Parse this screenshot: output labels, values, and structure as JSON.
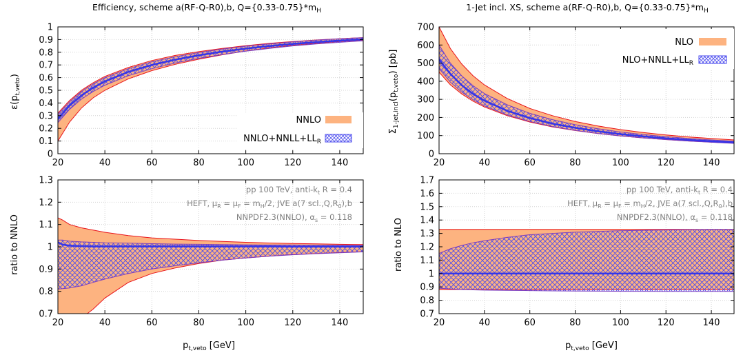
{
  "colors": {
    "nnlo_band": "#fdb380",
    "nnlo_edge": "#e8121a",
    "resum_hatch": "#4a4aee",
    "resum_edge": "#7a3cc0",
    "central": "#3535e8"
  },
  "chart_data": [
    {
      "id": "efficiency",
      "type": "area",
      "title": "Efficiency, scheme a(RF-Q-R0),b, Q={0.33-0.75}*m",
      "title_sub": "H",
      "ylabel": "ε(p",
      "ylabel_sub": "t,veto",
      "ylabel_tail": ")",
      "xlabel": "",
      "xlim": [
        20,
        150
      ],
      "ylim": [
        0,
        1
      ],
      "xticks": [
        "20",
        "40",
        "60",
        "80",
        "100",
        "120",
        "140"
      ],
      "yticks": [
        "0",
        "0.1",
        "0.2",
        "0.3",
        "0.4",
        "0.5",
        "0.6",
        "0.7",
        "0.8",
        "0.9",
        "1"
      ],
      "legend_position": "bottom-right",
      "x": [
        20,
        25,
        30,
        35,
        40,
        50,
        60,
        70,
        80,
        90,
        100,
        110,
        120,
        130,
        140,
        150
      ],
      "series": [
        {
          "name": "NNLO",
          "style": "band",
          "lower": [
            0.1,
            0.25,
            0.36,
            0.44,
            0.5,
            0.59,
            0.655,
            0.705,
            0.745,
            0.78,
            0.81,
            0.835,
            0.855,
            0.87,
            0.885,
            0.895
          ],
          "upper": [
            0.32,
            0.42,
            0.5,
            0.56,
            0.61,
            0.68,
            0.735,
            0.775,
            0.805,
            0.83,
            0.852,
            0.87,
            0.885,
            0.897,
            0.907,
            0.915
          ]
        },
        {
          "name": "NNLO+NNLL+LL",
          "name_sub": "R",
          "style": "hatch",
          "lower": [
            0.245,
            0.35,
            0.43,
            0.49,
            0.54,
            0.615,
            0.67,
            0.715,
            0.752,
            0.782,
            0.808,
            0.83,
            0.85,
            0.865,
            0.878,
            0.89
          ],
          "upper": [
            0.31,
            0.41,
            0.49,
            0.55,
            0.6,
            0.67,
            0.725,
            0.765,
            0.798,
            0.825,
            0.848,
            0.866,
            0.882,
            0.895,
            0.906,
            0.915
          ],
          "central": [
            0.275,
            0.38,
            0.46,
            0.52,
            0.57,
            0.645,
            0.7,
            0.742,
            0.776,
            0.805,
            0.829,
            0.849,
            0.866,
            0.88,
            0.892,
            0.902
          ]
        }
      ]
    },
    {
      "id": "xs",
      "type": "area",
      "title": "1-Jet incl. XS, scheme a(RF-Q-R0),b, Q={0.33-0.75}*m",
      "title_sub": "H",
      "ylabel": "Σ",
      "ylabel_sub": "1-jet,incl",
      "ylabel_mid": "(p",
      "ylabel_sub2": "t,veto",
      "ylabel_tail": ") [pb]",
      "xlabel": "",
      "xlim": [
        20,
        150
      ],
      "ylim": [
        0,
        700
      ],
      "xticks": [
        "20",
        "40",
        "60",
        "80",
        "100",
        "120",
        "140"
      ],
      "yticks": [
        "0",
        "100",
        "200",
        "300",
        "400",
        "500",
        "600",
        "700"
      ],
      "legend_position": "top-right",
      "x": [
        20,
        25,
        30,
        35,
        40,
        50,
        60,
        70,
        80,
        90,
        100,
        110,
        120,
        130,
        140,
        150
      ],
      "series": [
        {
          "name": "NLO",
          "style": "band",
          "lower": [
            450,
            380,
            330,
            290,
            258,
            210,
            175,
            148,
            128,
            111,
            98,
            87,
            78,
            70,
            64,
            58
          ],
          "upper": [
            700,
            580,
            495,
            430,
            380,
            305,
            250,
            210,
            178,
            153,
            133,
            117,
            104,
            93,
            84,
            76
          ]
        },
        {
          "name": "NLO+NNLL+LL",
          "name_sub": "R",
          "style": "hatch",
          "lower": [
            470,
            395,
            340,
            298,
            264,
            214,
            178,
            150,
            129,
            112,
            98,
            87,
            78,
            70,
            63,
            57
          ],
          "upper": [
            600,
            500,
            430,
            375,
            332,
            270,
            223,
            188,
            160,
            138,
            120,
            106,
            94,
            84,
            76,
            69
          ],
          "central": [
            520,
            440,
            378,
            330,
            293,
            237,
            197,
            166,
            143,
            124,
            108,
            96,
            85,
            76,
            69,
            63
          ]
        }
      ]
    },
    {
      "id": "ratio_nnlo",
      "type": "area",
      "title": "",
      "ylabel": "ratio to NNLO",
      "xlabel": "p",
      "xlabel_sub": "t,veto",
      "xlabel_tail": " [GeV]",
      "xlim": [
        20,
        150
      ],
      "ylim": [
        0.7,
        1.3
      ],
      "xticks": [
        "20",
        "40",
        "60",
        "80",
        "100",
        "120",
        "140"
      ],
      "yticks": [
        "0.7",
        "0.8",
        "0.9",
        "1",
        "1.1",
        "1.2",
        "1.3"
      ],
      "x": [
        20,
        22,
        25,
        30,
        35,
        40,
        50,
        60,
        70,
        80,
        90,
        100,
        110,
        120,
        130,
        140,
        150
      ],
      "series": [
        {
          "name": "NNLO",
          "style": "band",
          "lower": [
            0.45,
            0.55,
            0.62,
            0.68,
            0.72,
            0.77,
            0.84,
            0.88,
            0.905,
            0.925,
            0.94,
            0.95,
            0.958,
            0.965,
            0.97,
            0.974,
            0.978
          ],
          "upper": [
            1.13,
            1.12,
            1.1,
            1.085,
            1.075,
            1.065,
            1.05,
            1.04,
            1.034,
            1.028,
            1.024,
            1.02,
            1.017,
            1.015,
            1.013,
            1.011,
            1.01
          ]
        },
        {
          "name": "NNLO+NNLL+LL",
          "name_sub": "R",
          "style": "hatch",
          "lower": [
            0.81,
            0.812,
            0.815,
            0.825,
            0.84,
            0.855,
            0.88,
            0.9,
            0.915,
            0.928,
            0.94,
            0.95,
            0.958,
            0.964,
            0.969,
            0.973,
            0.977
          ],
          "upper": [
            1.03,
            1.03,
            1.025,
            1.022,
            1.02,
            1.018,
            1.016,
            1.014,
            1.012,
            1.011,
            1.01,
            1.009,
            1.008,
            1.008,
            1.007,
            1.007,
            1.006
          ],
          "central": [
            1.02,
            1.01,
            1.005,
            1.003,
            1.002,
            1.002,
            1.002,
            1.002,
            1.002,
            1.002,
            1.002,
            1.002,
            1.002,
            1.001,
            1.001,
            1.001,
            1.001
          ]
        }
      ],
      "annotations": [
        {
          "id": "info1",
          "parts": [
            [
              "pp 100 TeV, anti-k",
              ""
            ],
            [
              "t",
              "sub"
            ],
            [
              " R = 0.4",
              ""
            ]
          ]
        },
        {
          "id": "info2",
          "parts": [
            [
              "HEFT, μ",
              ""
            ],
            [
              "R",
              "sub"
            ],
            [
              " = μ",
              ""
            ],
            [
              "F",
              "sub"
            ],
            [
              " = m",
              ""
            ],
            [
              "H",
              "sub"
            ],
            [
              "/2, JVE a(7 scl.,Q,R",
              ""
            ],
            [
              "0",
              "sub"
            ],
            [
              "),b",
              ""
            ]
          ]
        },
        {
          "id": "info3",
          "parts": [
            [
              "NNPDF2.3(NNLO), α",
              ""
            ],
            [
              "s",
              "sub"
            ],
            [
              " = 0.118",
              ""
            ]
          ]
        }
      ]
    },
    {
      "id": "ratio_nlo",
      "type": "area",
      "title": "",
      "ylabel": "ratio to NLO",
      "xlabel": "p",
      "xlabel_sub": "t,veto",
      "xlabel_tail": " [GeV]",
      "xlim": [
        20,
        150
      ],
      "ylim": [
        0.7,
        1.7
      ],
      "xticks": [
        "20",
        "40",
        "60",
        "80",
        "100",
        "120",
        "140"
      ],
      "yticks": [
        "0.7",
        "0.8",
        "0.9",
        "1",
        "1.1",
        "1.2",
        "1.3",
        "1.4",
        "1.5",
        "1.6",
        "1.7"
      ],
      "x": [
        20,
        25,
        30,
        35,
        40,
        50,
        60,
        70,
        80,
        90,
        100,
        110,
        120,
        130,
        140,
        150
      ],
      "series": [
        {
          "name": "NLO",
          "style": "band",
          "lower": [
            0.88,
            0.88,
            0.88,
            0.88,
            0.88,
            0.88,
            0.88,
            0.88,
            0.88,
            0.88,
            0.88,
            0.88,
            0.88,
            0.88,
            0.88,
            0.88
          ],
          "upper": [
            1.33,
            1.33,
            1.33,
            1.33,
            1.33,
            1.33,
            1.33,
            1.33,
            1.33,
            1.33,
            1.33,
            1.33,
            1.33,
            1.33,
            1.33,
            1.33
          ]
        },
        {
          "name": "NLO+NNLL+LL",
          "name_sub": "R",
          "style": "hatch",
          "lower": [
            0.89,
            0.885,
            0.88,
            0.878,
            0.876,
            0.874,
            0.872,
            0.87,
            0.869,
            0.868,
            0.867,
            0.867,
            0.866,
            0.866,
            0.866,
            0.866
          ],
          "upper": [
            1.15,
            1.185,
            1.21,
            1.23,
            1.245,
            1.27,
            1.29,
            1.3,
            1.31,
            1.315,
            1.32,
            1.323,
            1.326,
            1.328,
            1.33,
            1.33
          ],
          "central": [
            1.0,
            1.0,
            1.0,
            1.0,
            1.0,
            1.0,
            1.0,
            1.0,
            1.0,
            1.0,
            1.0,
            1.0,
            1.0,
            1.0,
            1.0,
            1.0
          ]
        }
      ],
      "annotations": [
        {
          "id": "info1",
          "parts": [
            [
              "pp 100 TeV, anti-k",
              ""
            ],
            [
              "t",
              "sub"
            ],
            [
              " R = 0.4",
              ""
            ]
          ]
        },
        {
          "id": "info2",
          "parts": [
            [
              "HEFT, μ",
              ""
            ],
            [
              "R",
              "sub"
            ],
            [
              " = μ",
              ""
            ],
            [
              "F",
              "sub"
            ],
            [
              " = m",
              ""
            ],
            [
              "H",
              "sub"
            ],
            [
              "/2, JVE a(7 scl.,Q,R",
              ""
            ],
            [
              "0",
              "sub"
            ],
            [
              "),b",
              ""
            ]
          ]
        },
        {
          "id": "info3",
          "parts": [
            [
              "NNPDF2.3(NNLO), α",
              ""
            ],
            [
              "s",
              "sub"
            ],
            [
              " = 0.118",
              ""
            ]
          ]
        }
      ]
    }
  ]
}
